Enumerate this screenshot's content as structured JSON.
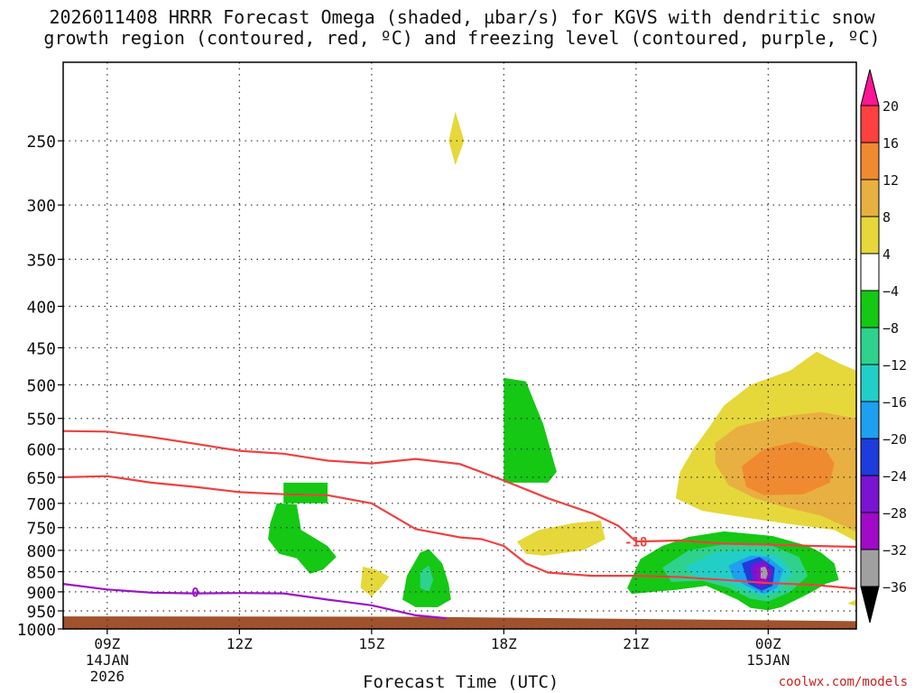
{
  "title_line1": "2026011408 HRRR Forecast Omega (shaded, µbar/s) for KGVS with dendritic snow",
  "title_line2": "growth region (contoured, red, ºC) and freezing level (contoured, purple, ºC)",
  "credit": "coolwx.com/models",
  "chart_data": {
    "type": "heatmap",
    "title": "2026011408 HRRR Forecast Omega (shaded, µbar/s) for KGVS with dendritic snow growth region (contoured, red, ºC) and freezing level (contoured, purple, ºC)",
    "xlabel": "Forecast Time (UTC)",
    "ylabel": "",
    "x_range_hours_from_09Z": [
      -1,
      17
    ],
    "y_range_hPa": [
      1000,
      200
    ],
    "y_scale": "log-pressure",
    "grid": true,
    "x_ticks": [
      {
        "h": 0,
        "line1": "09Z",
        "line2": "14JAN",
        "line3": "2026"
      },
      {
        "h": 3,
        "line1": "12Z",
        "line2": "",
        "line3": ""
      },
      {
        "h": 6,
        "line1": "15Z",
        "line2": "",
        "line3": ""
      },
      {
        "h": 9,
        "line1": "18Z",
        "line2": "",
        "line3": ""
      },
      {
        "h": 12,
        "line1": "21Z",
        "line2": "",
        "line3": ""
      },
      {
        "h": 15,
        "line1": "00Z",
        "line2": "15JAN",
        "line3": ""
      }
    ],
    "y_ticks": [
      250,
      300,
      350,
      400,
      450,
      500,
      550,
      600,
      650,
      700,
      750,
      800,
      850,
      900,
      950,
      1000
    ],
    "colorbar": {
      "labels": [
        "20",
        "16",
        "12",
        "8",
        "4",
        "−4",
        "−8",
        "−12",
        "−16",
        "−20",
        "−24",
        "−28",
        "−32",
        "−36"
      ],
      "colors": [
        "#ff1493",
        "#ff4040",
        "#f08a30",
        "#e8b040",
        "#e6d83a",
        "#ffffff",
        "#14c814",
        "#2ed28c",
        "#22cfc8",
        "#1ea0f0",
        "#1e3cdc",
        "#7a14d2",
        "#a00ac8",
        "#a0a0a0",
        "#000000"
      ]
    },
    "omega_regions": [
      {
        "level": "4",
        "color": "#e6d83a",
        "points": [
          [
            7.9,
            230
          ],
          [
            8.1,
            250
          ],
          [
            7.9,
            268
          ],
          [
            7.75,
            250
          ]
        ]
      },
      {
        "level": "4",
        "color": "#e6d83a",
        "points": [
          [
            5.8,
            838
          ],
          [
            6.1,
            845
          ],
          [
            6.4,
            862
          ],
          [
            6.2,
            890
          ],
          [
            6.0,
            912
          ],
          [
            5.75,
            890
          ]
        ]
      },
      {
        "level": "4",
        "color": "#e6d83a",
        "points": [
          [
            9.3,
            780
          ],
          [
            9.8,
            755
          ],
          [
            10.6,
            740
          ],
          [
            11.2,
            735
          ],
          [
            11.3,
            775
          ],
          [
            10.8,
            800
          ],
          [
            9.9,
            812
          ],
          [
            9.5,
            808
          ]
        ]
      },
      {
        "level": "4",
        "color": "#e6d83a",
        "points": [
          [
            14.0,
            530
          ],
          [
            14.6,
            500
          ],
          [
            15.5,
            480
          ],
          [
            16.1,
            455
          ],
          [
            16.6,
            470
          ],
          [
            17,
            480
          ],
          [
            17,
            780
          ],
          [
            16.5,
            755
          ],
          [
            15.3,
            740
          ],
          [
            14.2,
            725
          ],
          [
            13.5,
            715
          ],
          [
            12.9,
            690
          ],
          [
            13.0,
            640
          ],
          [
            13.3,
            600
          ],
          [
            13.7,
            560
          ]
        ]
      },
      {
        "level": "4",
        "color": "#e6d83a",
        "points": [
          [
            17,
            920
          ],
          [
            16.8,
            930
          ],
          [
            17,
            937
          ]
        ]
      },
      {
        "level": "8",
        "color": "#e8b040",
        "points": [
          [
            13.8,
            590
          ],
          [
            14.3,
            563
          ],
          [
            15.2,
            548
          ],
          [
            16.2,
            540
          ],
          [
            17,
            550
          ],
          [
            17,
            760
          ],
          [
            16.8,
            750
          ],
          [
            16.2,
            725
          ],
          [
            15.4,
            708
          ],
          [
            14.7,
            690
          ],
          [
            14.1,
            665
          ],
          [
            13.8,
            625
          ]
        ]
      },
      {
        "level": "12",
        "color": "#f08a30",
        "points": [
          [
            14.4,
            630
          ],
          [
            14.9,
            600
          ],
          [
            15.6,
            588
          ],
          [
            16.3,
            600
          ],
          [
            16.5,
            625
          ],
          [
            16.4,
            660
          ],
          [
            15.8,
            682
          ],
          [
            14.9,
            684
          ],
          [
            14.5,
            668
          ]
        ]
      },
      {
        "level": "-4",
        "color": "#14c814",
        "points": [
          [
            9.0,
            490
          ],
          [
            9.5,
            495
          ],
          [
            9.9,
            560
          ],
          [
            10.2,
            640
          ],
          [
            10.0,
            660
          ],
          [
            9.0,
            660
          ]
        ]
      },
      {
        "level": "-4",
        "color": "#14c814",
        "points": [
          [
            4.0,
            660
          ],
          [
            5.0,
            660
          ],
          [
            5.0,
            700
          ],
          [
            4.0,
            700
          ]
        ]
      },
      {
        "level": "-4",
        "color": "#14c814",
        "points": [
          [
            3.7,
            740
          ],
          [
            3.85,
            700
          ],
          [
            4.3,
            702
          ],
          [
            4.4,
            755
          ],
          [
            5.0,
            790
          ],
          [
            5.2,
            815
          ],
          [
            4.9,
            845
          ],
          [
            4.6,
            855
          ],
          [
            4.3,
            818
          ],
          [
            3.9,
            808
          ],
          [
            3.65,
            775
          ]
        ]
      },
      {
        "level": "-4",
        "color": "#14c814",
        "points": [
          [
            6.8,
            860
          ],
          [
            7.1,
            805
          ],
          [
            7.3,
            797
          ],
          [
            7.6,
            830
          ],
          [
            7.75,
            880
          ],
          [
            7.8,
            920
          ],
          [
            7.5,
            940
          ],
          [
            7.0,
            940
          ],
          [
            6.7,
            920
          ],
          [
            6.75,
            890
          ]
        ]
      },
      {
        "level": "-4",
        "color": "#14c814",
        "points": [
          [
            11.8,
            890
          ],
          [
            12.1,
            820
          ],
          [
            12.6,
            790
          ],
          [
            13.2,
            770
          ],
          [
            14.0,
            758
          ],
          [
            15.1,
            768
          ],
          [
            15.9,
            790
          ],
          [
            16.2,
            805
          ],
          [
            16.5,
            830
          ],
          [
            16.6,
            870
          ],
          [
            16.3,
            880
          ],
          [
            16.0,
            900
          ],
          [
            15.3,
            940
          ],
          [
            15.0,
            948
          ],
          [
            14.6,
            942
          ],
          [
            14.3,
            920
          ],
          [
            13.6,
            885
          ],
          [
            12.9,
            895
          ],
          [
            12.4,
            900
          ],
          [
            11.9,
            905
          ]
        ]
      },
      {
        "level": "-8",
        "color": "#2ed28c",
        "points": [
          [
            7.1,
            850
          ],
          [
            7.3,
            835
          ],
          [
            7.4,
            870
          ],
          [
            7.3,
            900
          ],
          [
            7.1,
            890
          ]
        ]
      },
      {
        "level": "-8",
        "color": "#2ed28c",
        "points": [
          [
            12.6,
            840
          ],
          [
            13.2,
            800
          ],
          [
            14.2,
            783
          ],
          [
            15.1,
            790
          ],
          [
            15.7,
            815
          ],
          [
            15.9,
            860
          ],
          [
            15.5,
            900
          ],
          [
            15.0,
            925
          ],
          [
            14.6,
            918
          ],
          [
            14.1,
            890
          ],
          [
            13.5,
            872
          ],
          [
            12.8,
            875
          ]
        ]
      },
      {
        "level": "-12",
        "color": "#22cfc8",
        "points": [
          [
            13.1,
            840
          ],
          [
            13.8,
            805
          ],
          [
            14.6,
            800
          ],
          [
            15.2,
            812
          ],
          [
            15.55,
            850
          ],
          [
            15.3,
            895
          ],
          [
            14.9,
            912
          ],
          [
            14.6,
            900
          ],
          [
            14.1,
            878
          ],
          [
            13.4,
            868
          ]
        ]
      },
      {
        "level": "-16",
        "color": "#1ea0f0",
        "points": [
          [
            14.1,
            835
          ],
          [
            14.6,
            812
          ],
          [
            15.0,
            815
          ],
          [
            15.35,
            845
          ],
          [
            15.2,
            890
          ],
          [
            14.9,
            905
          ],
          [
            14.5,
            885
          ],
          [
            14.2,
            865
          ]
        ]
      },
      {
        "level": "-20",
        "color": "#1e3cdc",
        "points": [
          [
            14.4,
            830
          ],
          [
            14.8,
            815
          ],
          [
            15.15,
            840
          ],
          [
            15.1,
            885
          ],
          [
            14.85,
            897
          ],
          [
            14.55,
            880
          ]
        ]
      },
      {
        "level": "-24",
        "color": "#7a14d2",
        "points": [
          [
            14.6,
            835
          ],
          [
            14.9,
            822
          ],
          [
            15.1,
            848
          ],
          [
            15.0,
            880
          ],
          [
            14.8,
            890
          ],
          [
            14.65,
            872
          ]
        ]
      },
      {
        "level": "-28",
        "color": "#a00ac8",
        "points": [
          [
            14.72,
            843
          ],
          [
            14.95,
            832
          ],
          [
            15.05,
            852
          ],
          [
            14.95,
            877
          ],
          [
            14.78,
            880
          ]
        ]
      },
      {
        "level": "-32",
        "color": "#a0a0a0",
        "points": [
          [
            14.83,
            840
          ],
          [
            14.93,
            838
          ],
          [
            15.0,
            852
          ],
          [
            14.95,
            868
          ],
          [
            14.83,
            866
          ]
        ]
      }
    ],
    "contours": [
      {
        "name": "",
        "color": "#f04040",
        "points": [
          [
            -1,
            570
          ],
          [
            0,
            571
          ],
          [
            1,
            580
          ],
          [
            2,
            591
          ],
          [
            3,
            603
          ],
          [
            4,
            608
          ],
          [
            5,
            620
          ],
          [
            6,
            625
          ],
          [
            7,
            617
          ],
          [
            8,
            626
          ],
          [
            9,
            656
          ],
          [
            10,
            690
          ],
          [
            11,
            720
          ],
          [
            11.6,
            746
          ],
          [
            12,
            780
          ],
          [
            13,
            778
          ],
          [
            14,
            785
          ],
          [
            15,
            787
          ],
          [
            16,
            790
          ],
          [
            17,
            792
          ]
        ]
      },
      {
        "name": "",
        "color": "#f04040",
        "points": [
          [
            -1,
            650
          ],
          [
            0,
            648
          ],
          [
            1,
            660
          ],
          [
            2,
            668
          ],
          [
            3,
            678
          ],
          [
            4,
            682
          ],
          [
            5,
            684
          ],
          [
            6,
            700
          ],
          [
            7,
            753
          ],
          [
            8,
            771
          ],
          [
            8.5,
            775
          ],
          [
            9,
            790
          ],
          [
            9.5,
            830
          ],
          [
            10,
            852
          ],
          [
            11,
            860
          ],
          [
            12,
            860
          ],
          [
            13,
            863
          ],
          [
            14,
            870
          ],
          [
            15,
            878
          ],
          [
            16,
            882
          ],
          [
            17,
            892
          ]
        ]
      },
      {
        "name": "",
        "color": "#9a14c8",
        "points": [
          [
            -1,
            880
          ],
          [
            0,
            894
          ],
          [
            1,
            902
          ],
          [
            2,
            904
          ],
          [
            3,
            903
          ],
          [
            4,
            904
          ],
          [
            5,
            920
          ],
          [
            6,
            935
          ],
          [
            7,
            962
          ],
          [
            7.7,
            970
          ]
        ]
      }
    ],
    "contour_labels": [
      {
        "text": "0",
        "x": 2,
        "p": 901,
        "color": "#9a14c8"
      },
      {
        "text": "-18",
        "x": 12,
        "p": 781,
        "color": "#f04040"
      }
    ],
    "ground": {
      "color": "#a0522d",
      "top_left_hPa": 965,
      "top_right_hPa": 978
    }
  }
}
